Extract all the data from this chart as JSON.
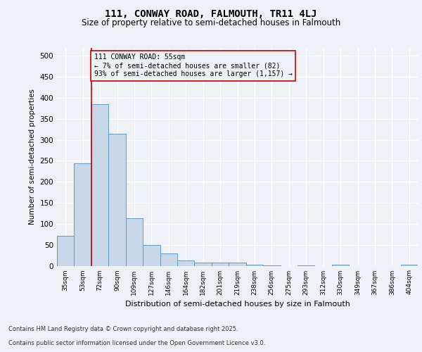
{
  "title_line1": "111, CONWAY ROAD, FALMOUTH, TR11 4LJ",
  "title_line2": "Size of property relative to semi-detached houses in Falmouth",
  "xlabel": "Distribution of semi-detached houses by size in Falmouth",
  "ylabel": "Number of semi-detached properties",
  "categories": [
    "35sqm",
    "53sqm",
    "72sqm",
    "90sqm",
    "109sqm",
    "127sqm",
    "146sqm",
    "164sqm",
    "182sqm",
    "201sqm",
    "219sqm",
    "238sqm",
    "256sqm",
    "275sqm",
    "293sqm",
    "312sqm",
    "330sqm",
    "349sqm",
    "367sqm",
    "386sqm",
    "404sqm"
  ],
  "values": [
    72,
    244,
    385,
    315,
    113,
    50,
    29,
    13,
    7,
    8,
    7,
    2,
    1,
    0,
    1,
    0,
    2,
    0,
    0,
    0,
    3
  ],
  "bar_color": "#c8d8e8",
  "bar_edge_color": "#6699bb",
  "annotation_line_color": "#cc0000",
  "annotation_text": "111 CONWAY ROAD: 55sqm\n← 7% of semi-detached houses are smaller (82)\n93% of semi-detached houses are larger (1,157) →",
  "annotation_box_edge_color": "#cc0000",
  "ylim": [
    0,
    520
  ],
  "yticks": [
    0,
    50,
    100,
    150,
    200,
    250,
    300,
    350,
    400,
    450,
    500
  ],
  "footer_line1": "Contains HM Land Registry data © Crown copyright and database right 2025.",
  "footer_line2": "Contains public sector information licensed under the Open Government Licence v3.0.",
  "background_color": "#eef2f6",
  "grid_color": "#ffffff",
  "vline_x": 1.5
}
